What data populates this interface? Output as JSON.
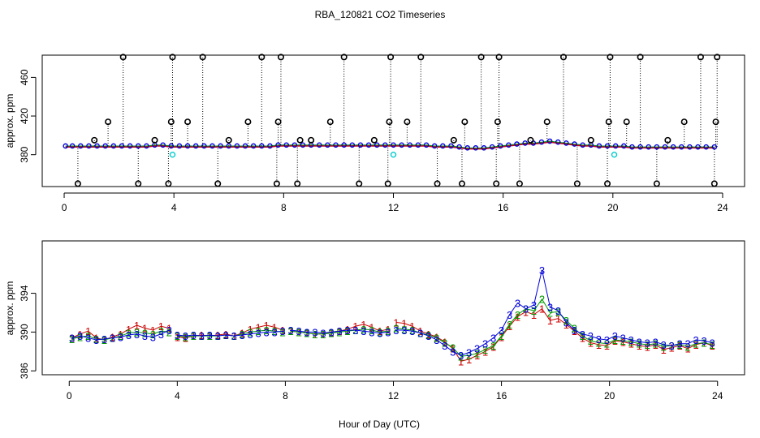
{
  "chart_data": [
    {
      "type": "scatter",
      "panel": "top",
      "title": "RBA_120821  CO2 Timeseries",
      "xlabel": "",
      "ylabel": "approx. ppm",
      "xlim": [
        -0.8,
        24.8
      ],
      "ylim": [
        347,
        483
      ],
      "xticks": [
        0,
        4,
        8,
        12,
        16,
        20,
        24
      ],
      "yticks": [
        380,
        420,
        460
      ],
      "x_tick_labels": [
        "0",
        "4",
        "8",
        "12",
        "16",
        "20",
        "24"
      ],
      "y_tick_labels": [
        "380",
        "420",
        "460"
      ],
      "colors": {
        "black": "#000000",
        "red": "#cc0000",
        "blue": "#0000dd",
        "green": "#009900",
        "cyan": "#00cccc"
      },
      "series": [
        {
          "name": "baseline",
          "kind": "points",
          "x": [
            0.05,
            0.3,
            0.6,
            0.9,
            1.2,
            1.5,
            1.8,
            2.1,
            2.4,
            2.7,
            3.0,
            3.3,
            3.6,
            3.9,
            4.2,
            4.5,
            4.8,
            5.1,
            5.4,
            5.7,
            6.0,
            6.3,
            6.6,
            6.9,
            7.2,
            7.5,
            7.8,
            8.1,
            8.4,
            8.7,
            9.0,
            9.3,
            9.6,
            9.9,
            10.2,
            10.5,
            10.8,
            11.1,
            11.4,
            11.7,
            12.0,
            12.3,
            12.6,
            12.9,
            13.2,
            13.5,
            13.8,
            14.1,
            14.4,
            14.7,
            15.0,
            15.3,
            15.6,
            15.9,
            16.2,
            16.5,
            16.8,
            17.1,
            17.4,
            17.7,
            18.0,
            18.3,
            18.6,
            18.9,
            19.2,
            19.5,
            19.8,
            20.1,
            20.4,
            20.7,
            21.0,
            21.3,
            21.6,
            21.9,
            22.2,
            22.5,
            22.8,
            23.1,
            23.4,
            23.7
          ],
          "y": [
            389,
            389,
            389,
            389,
            389,
            389,
            389,
            389,
            389,
            389,
            389,
            390,
            390,
            389,
            389,
            389,
            389,
            389,
            389,
            389,
            389,
            389,
            389,
            389,
            389,
            389,
            390,
            390,
            390,
            390,
            390,
            390,
            390,
            390,
            390,
            390,
            390,
            390,
            390,
            390,
            390,
            390,
            390,
            390,
            390,
            389,
            389,
            389,
            388,
            387,
            387,
            387,
            388,
            389,
            390,
            391,
            392,
            392,
            393,
            394,
            393,
            392,
            391,
            390,
            390,
            389,
            389,
            389,
            389,
            388,
            388,
            388,
            388,
            388,
            388,
            388,
            388,
            388,
            388,
            388
          ]
        },
        {
          "name": "outliers",
          "kind": "open-circles",
          "x": [
            0.5,
            1.1,
            1.6,
            2.15,
            2.7,
            3.3,
            3.8,
            3.9,
            3.95,
            4.5,
            5.05,
            5.6,
            6.0,
            6.7,
            7.2,
            7.75,
            7.8,
            7.9,
            8.5,
            8.6,
            9.0,
            9.7,
            10.2,
            10.75,
            11.3,
            11.8,
            11.85,
            11.9,
            12.5,
            13.0,
            13.6,
            14.2,
            14.5,
            14.6,
            15.2,
            15.75,
            15.8,
            15.85,
            16.6,
            17.0,
            17.6,
            18.2,
            18.7,
            19.2,
            19.8,
            19.85,
            19.9,
            20.5,
            21.0,
            21.6,
            22.0,
            22.6,
            23.2,
            23.7,
            23.75,
            23.8
          ],
          "y": [
            350,
            395,
            414,
            481,
            350,
            395,
            350,
            414,
            481,
            414,
            481,
            350,
            395,
            414,
            481,
            350,
            414,
            481,
            350,
            395,
            395,
            414,
            481,
            350,
            395,
            350,
            414,
            481,
            414,
            481,
            350,
            395,
            350,
            414,
            481,
            350,
            414,
            481,
            350,
            395,
            414,
            481,
            350,
            395,
            350,
            414,
            481,
            414,
            481,
            350,
            395,
            414,
            481,
            350,
            414,
            481
          ]
        },
        {
          "name": "cyan-points",
          "kind": "open-circles",
          "x": [
            3.95,
            12.0,
            20.05
          ],
          "y": [
            380,
            380,
            380
          ]
        }
      ]
    },
    {
      "type": "line",
      "panel": "bottom",
      "title": "",
      "xlabel": "Hour of Day (UTC)",
      "ylabel": "approx. ppm",
      "xlim": [
        -1,
        25
      ],
      "ylim": [
        385.6,
        399.4
      ],
      "xticks": [
        0,
        4,
        8,
        12,
        16,
        20,
        24
      ],
      "yticks": [
        386,
        390,
        394
      ],
      "x_tick_labels": [
        "0",
        "4",
        "8",
        "12",
        "16",
        "20",
        "24"
      ],
      "y_tick_labels": [
        "386",
        "390",
        "394"
      ],
      "marker_labels": [
        "1",
        "2",
        "3"
      ],
      "series": [
        {
          "name": "1",
          "color": "#cc0000",
          "x": [
            0.1,
            0.4,
            0.7,
            1.0,
            1.3,
            1.6,
            1.9,
            2.2,
            2.5,
            2.8,
            3.1,
            3.4,
            3.7,
            4.0,
            4.3,
            4.6,
            4.9,
            5.2,
            5.5,
            5.8,
            6.1,
            6.4,
            6.7,
            7.0,
            7.3,
            7.6,
            7.9,
            8.2,
            8.5,
            8.8,
            9.1,
            9.4,
            9.7,
            10.0,
            10.3,
            10.6,
            10.9,
            11.2,
            11.5,
            11.8,
            12.1,
            12.4,
            12.7,
            13.0,
            13.3,
            13.6,
            13.9,
            14.2,
            14.5,
            14.8,
            15.1,
            15.4,
            15.7,
            16.0,
            16.3,
            16.6,
            16.9,
            17.2,
            17.5,
            17.8,
            18.1,
            18.4,
            18.7,
            19.0,
            19.3,
            19.6,
            19.9,
            20.2,
            20.5,
            20.8,
            21.1,
            21.4,
            21.7,
            22.0,
            22.3,
            22.6,
            22.9,
            23.2,
            23.5,
            23.8
          ],
          "y": [
            389.4,
            389.8,
            390.1,
            389.4,
            389.2,
            389.5,
            389.8,
            390.3,
            390.7,
            390.4,
            390.2,
            390.6,
            390.4,
            389.5,
            389.4,
            389.6,
            389.7,
            389.6,
            389.7,
            389.8,
            389.6,
            389.9,
            390.3,
            390.5,
            390.7,
            390.5,
            390.2,
            390.1,
            390.0,
            389.9,
            389.8,
            389.8,
            390.0,
            390.1,
            390.3,
            390.6,
            390.8,
            390.5,
            390.1,
            390.3,
            391.0,
            390.9,
            390.6,
            390.1,
            389.8,
            389.5,
            389.0,
            388.3,
            387.0,
            387.2,
            387.6,
            388.0,
            388.5,
            389.5,
            390.6,
            391.6,
            392.1,
            391.8,
            392.4,
            391.2,
            391.4,
            390.8,
            390.1,
            389.4,
            388.9,
            388.7,
            388.6,
            389.1,
            389.0,
            388.8,
            388.6,
            388.5,
            388.7,
            388.2,
            388.4,
            388.6,
            388.3,
            388.7,
            388.9,
            388.6
          ]
        },
        {
          "name": "2",
          "color": "#009900",
          "x": [
            0.1,
            0.4,
            0.7,
            1.0,
            1.3,
            1.6,
            1.9,
            2.2,
            2.5,
            2.8,
            3.1,
            3.4,
            3.7,
            4.0,
            4.3,
            4.6,
            4.9,
            5.2,
            5.5,
            5.8,
            6.1,
            6.4,
            6.7,
            7.0,
            7.3,
            7.6,
            7.9,
            8.2,
            8.5,
            8.8,
            9.1,
            9.4,
            9.7,
            10.0,
            10.3,
            10.6,
            10.9,
            11.2,
            11.5,
            11.8,
            12.1,
            12.4,
            12.7,
            13.0,
            13.3,
            13.6,
            13.9,
            14.2,
            14.5,
            14.8,
            15.1,
            15.4,
            15.7,
            16.0,
            16.3,
            16.6,
            16.9,
            17.2,
            17.5,
            17.8,
            18.1,
            18.4,
            18.7,
            19.0,
            19.3,
            19.6,
            19.9,
            20.2,
            20.5,
            20.8,
            21.1,
            21.4,
            21.7,
            22.0,
            22.3,
            22.6,
            22.9,
            23.2,
            23.5,
            23.8
          ],
          "y": [
            389.3,
            389.5,
            389.6,
            389.3,
            389.2,
            389.4,
            389.6,
            389.9,
            390.0,
            389.9,
            389.8,
            390.1,
            390.0,
            389.6,
            389.5,
            389.6,
            389.6,
            389.6,
            389.6,
            389.7,
            389.6,
            389.8,
            390.0,
            390.1,
            390.2,
            390.1,
            390.0,
            390.1,
            390.0,
            389.9,
            389.8,
            389.8,
            389.9,
            390.0,
            390.1,
            390.2,
            390.3,
            390.2,
            390.0,
            390.1,
            390.4,
            390.3,
            390.2,
            389.9,
            389.7,
            389.4,
            388.9,
            388.4,
            387.5,
            387.6,
            387.8,
            388.2,
            388.6,
            389.6,
            390.8,
            391.8,
            392.4,
            392.2,
            393.4,
            392.0,
            392.1,
            391.2,
            390.4,
            389.6,
            389.1,
            388.9,
            388.8,
            389.2,
            389.1,
            389.0,
            388.8,
            388.7,
            388.8,
            388.5,
            388.6,
            388.7,
            388.5,
            388.8,
            388.9,
            388.7
          ]
        },
        {
          "name": "3",
          "color": "#0000dd",
          "x": [
            0.1,
            0.4,
            0.7,
            1.0,
            1.3,
            1.6,
            1.9,
            2.2,
            2.5,
            2.8,
            3.1,
            3.4,
            3.7,
            4.0,
            4.3,
            4.6,
            4.9,
            5.2,
            5.5,
            5.8,
            6.1,
            6.4,
            6.7,
            7.0,
            7.3,
            7.6,
            7.9,
            8.2,
            8.5,
            8.8,
            9.1,
            9.4,
            9.7,
            10.0,
            10.3,
            10.6,
            10.9,
            11.2,
            11.5,
            11.8,
            12.1,
            12.4,
            12.7,
            13.0,
            13.3,
            13.6,
            13.9,
            14.2,
            14.5,
            14.8,
            15.1,
            15.4,
            15.7,
            16.0,
            16.3,
            16.6,
            16.9,
            17.2,
            17.5,
            17.8,
            18.1,
            18.4,
            18.7,
            19.0,
            19.3,
            19.6,
            19.9,
            20.2,
            20.5,
            20.8,
            21.1,
            21.4,
            21.7,
            22.0,
            22.3,
            22.6,
            22.9,
            23.2,
            23.5,
            23.8
          ],
          "y": [
            389.4,
            389.6,
            389.4,
            389.2,
            389.3,
            389.4,
            389.5,
            389.7,
            389.8,
            389.6,
            389.5,
            389.8,
            390.2,
            389.7,
            389.6,
            389.7,
            389.6,
            389.7,
            389.6,
            389.7,
            389.6,
            389.7,
            389.8,
            389.9,
            390.0,
            390.0,
            390.1,
            390.2,
            390.1,
            390.0,
            390.0,
            389.9,
            390.0,
            390.1,
            390.2,
            390.2,
            390.1,
            390.0,
            389.9,
            390.0,
            390.2,
            390.2,
            390.1,
            389.9,
            389.6,
            389.2,
            388.6,
            388.0,
            387.6,
            387.9,
            388.3,
            388.8,
            389.4,
            390.2,
            391.8,
            393.0,
            392.4,
            392.8,
            396.4,
            392.6,
            392.2,
            391.0,
            390.2,
            389.8,
            389.6,
            389.3,
            389.2,
            389.6,
            389.4,
            389.2,
            389.0,
            388.9,
            389.0,
            388.7,
            388.6,
            388.8,
            388.8,
            389.2,
            389.1,
            388.9
          ]
        }
      ]
    }
  ]
}
